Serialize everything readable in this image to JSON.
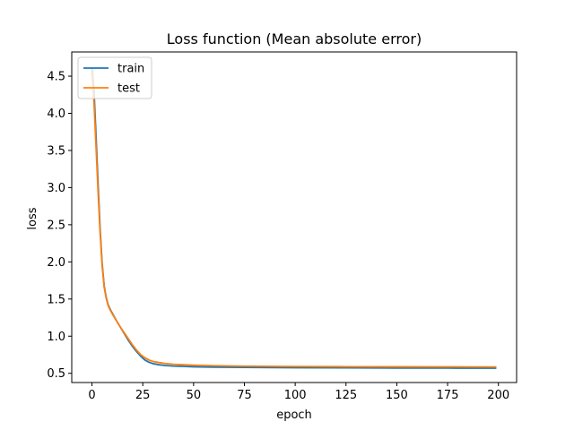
{
  "chart_data": {
    "type": "line",
    "title": "Loss function (Mean absolute error)",
    "xlabel": "epoch",
    "ylabel": "loss",
    "xlim": [
      -9.95,
      208.95
    ],
    "ylim": [
      0.376,
      4.826
    ],
    "xticks": [
      0,
      25,
      50,
      75,
      100,
      125,
      150,
      175,
      200
    ],
    "yticks": [
      0.5,
      1.0,
      1.5,
      2.0,
      2.5,
      3.0,
      3.5,
      4.0,
      4.5
    ],
    "ytick_labels": [
      "0.5",
      "1.0",
      "1.5",
      "2.0",
      "2.5",
      "3.0",
      "3.5",
      "4.0",
      "4.5"
    ],
    "grid": false,
    "legend_position": "top-left",
    "series": [
      {
        "name": "train",
        "color": "#1f77b4",
        "x": [
          0,
          1,
          2,
          3,
          4,
          5,
          6,
          7,
          8,
          9,
          10,
          12,
          14,
          16,
          18,
          20,
          22,
          24,
          26,
          28,
          30,
          33,
          36,
          40,
          45,
          50,
          60,
          75,
          100,
          125,
          150,
          175,
          199
        ],
        "y": [
          4.62,
          4.3,
          3.7,
          3.05,
          2.45,
          1.98,
          1.68,
          1.52,
          1.42,
          1.36,
          1.31,
          1.21,
          1.12,
          1.03,
          0.94,
          0.86,
          0.79,
          0.73,
          0.68,
          0.65,
          0.63,
          0.615,
          0.605,
          0.598,
          0.593,
          0.588,
          0.583,
          0.58,
          0.576,
          0.573,
          0.571,
          0.57,
          0.569
        ]
      },
      {
        "name": "test",
        "color": "#ff7f0e",
        "x": [
          0,
          1,
          2,
          3,
          4,
          5,
          6,
          7,
          8,
          9,
          10,
          12,
          14,
          16,
          18,
          20,
          22,
          24,
          26,
          28,
          30,
          33,
          36,
          40,
          45,
          50,
          60,
          75,
          100,
          125,
          150,
          175,
          199
        ],
        "y": [
          4.55,
          4.15,
          3.55,
          2.95,
          2.4,
          1.95,
          1.66,
          1.51,
          1.41,
          1.35,
          1.3,
          1.21,
          1.12,
          1.04,
          0.96,
          0.88,
          0.81,
          0.75,
          0.71,
          0.68,
          0.66,
          0.645,
          0.632,
          0.622,
          0.615,
          0.609,
          0.602,
          0.596,
          0.592,
          0.589,
          0.588,
          0.587,
          0.586
        ]
      }
    ]
  }
}
